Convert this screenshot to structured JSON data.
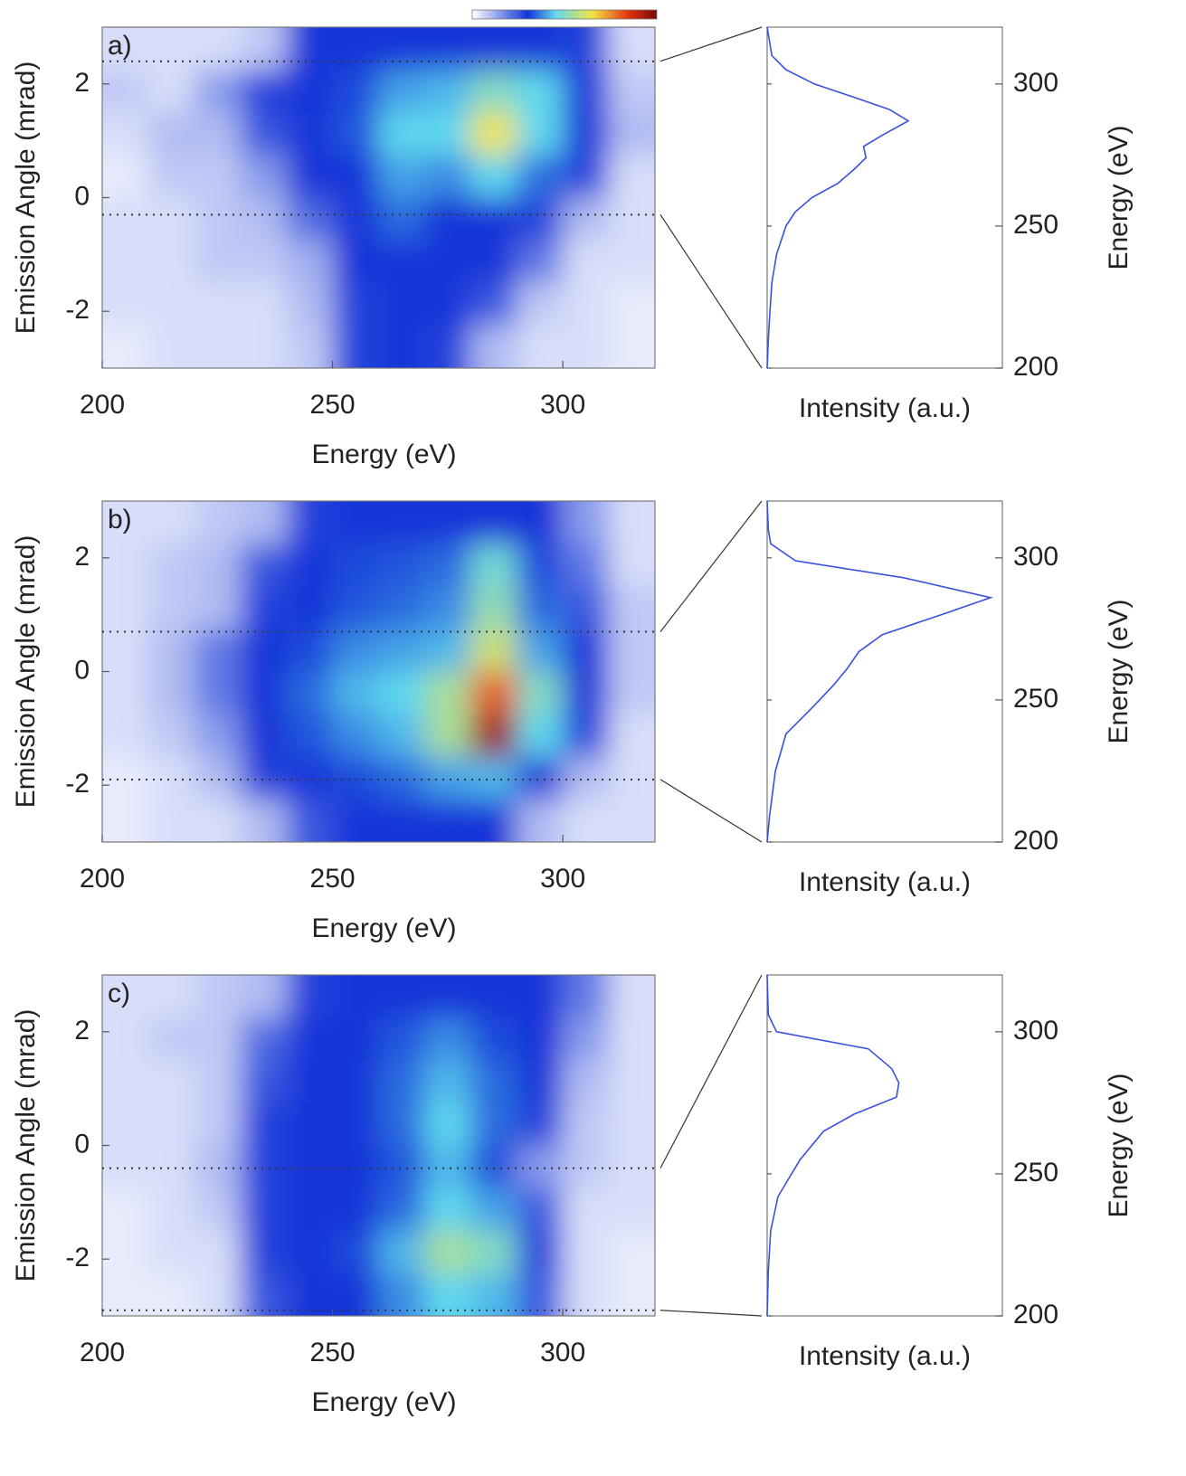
{
  "chart_data": [
    {
      "type": "heatmap",
      "panel_label": "a)",
      "xlabel": "Energy (eV)",
      "ylabel": "Emission Angle (mrad)",
      "x": [
        205,
        215,
        225,
        235,
        245,
        255,
        265,
        275,
        285,
        295,
        305,
        315
      ],
      "y": [
        2.625,
        1.875,
        1.125,
        0.375,
        -0.375,
        -1.125,
        -1.875,
        -2.625
      ],
      "z": [
        [
          0.05,
          0.05,
          0.05,
          0.08,
          0.3,
          0.3,
          0.3,
          0.3,
          0.3,
          0.3,
          0.28,
          0.05
        ],
        [
          0.08,
          0.05,
          0.15,
          0.28,
          0.3,
          0.32,
          0.4,
          0.42,
          0.5,
          0.45,
          0.3,
          0.08
        ],
        [
          0.05,
          0.1,
          0.1,
          0.25,
          0.3,
          0.33,
          0.45,
          0.45,
          0.65,
          0.45,
          0.3,
          0.1
        ],
        [
          0.03,
          0.08,
          0.08,
          0.15,
          0.3,
          0.3,
          0.4,
          0.38,
          0.45,
          0.35,
          0.28,
          0.05
        ],
        [
          0.05,
          0.05,
          0.08,
          0.1,
          0.22,
          0.3,
          0.35,
          0.3,
          0.3,
          0.28,
          0.1,
          0.05
        ],
        [
          0.05,
          0.05,
          0.08,
          0.08,
          0.12,
          0.3,
          0.3,
          0.3,
          0.3,
          0.2,
          0.05,
          0.05
        ],
        [
          0.05,
          0.05,
          0.05,
          0.05,
          0.1,
          0.28,
          0.3,
          0.3,
          0.25,
          0.08,
          0.05,
          0.03
        ],
        [
          0.03,
          0.05,
          0.05,
          0.05,
          0.08,
          0.28,
          0.3,
          0.28,
          0.1,
          0.05,
          0.05,
          0.03
        ]
      ],
      "xlim": [
        200,
        320
      ],
      "ylim": [
        -3,
        3
      ],
      "xticks": [
        200,
        250,
        300
      ],
      "yticks": [
        -2,
        0,
        2
      ],
      "integration_range": [
        -0.3,
        2.4
      ]
    },
    {
      "type": "profile",
      "xlabel": "Intensity (a.u.)",
      "ylabel": "Energy (eV)",
      "color": "#3a4fe0",
      "energy": [
        200,
        210,
        220,
        230,
        240,
        250,
        255,
        260,
        265,
        270,
        274,
        278,
        282,
        287,
        291,
        295,
        300,
        305,
        310,
        320
      ],
      "intensity": [
        0,
        0.005,
        0.012,
        0.02,
        0.04,
        0.08,
        0.12,
        0.19,
        0.3,
        0.37,
        0.42,
        0.41,
        0.49,
        0.6,
        0.52,
        0.38,
        0.2,
        0.08,
        0.02,
        0
      ],
      "xlim": [
        0,
        1
      ],
      "ylim": [
        200,
        320
      ],
      "yticks": [
        200,
        250,
        300
      ]
    },
    {
      "type": "heatmap",
      "panel_label": "b)",
      "xlabel": "Energy (eV)",
      "ylabel": "Emission Angle (mrad)",
      "x": [
        205,
        215,
        225,
        235,
        245,
        255,
        265,
        275,
        285,
        295,
        305,
        315
      ],
      "y": [
        2.625,
        1.875,
        1.125,
        0.375,
        -0.375,
        -1.125,
        -1.875,
        -2.625
      ],
      "z": [
        [
          0.05,
          0.05,
          0.08,
          0.1,
          0.28,
          0.3,
          0.3,
          0.3,
          0.3,
          0.3,
          0.15,
          0.05
        ],
        [
          0.05,
          0.08,
          0.1,
          0.25,
          0.3,
          0.32,
          0.33,
          0.35,
          0.48,
          0.32,
          0.2,
          0.05
        ],
        [
          0.05,
          0.08,
          0.1,
          0.28,
          0.3,
          0.33,
          0.35,
          0.38,
          0.52,
          0.35,
          0.25,
          0.08
        ],
        [
          0.05,
          0.1,
          0.2,
          0.3,
          0.32,
          0.38,
          0.4,
          0.42,
          0.6,
          0.4,
          0.3,
          0.08
        ],
        [
          0.05,
          0.1,
          0.2,
          0.3,
          0.35,
          0.42,
          0.45,
          0.55,
          0.8,
          0.5,
          0.3,
          0.08
        ],
        [
          0.05,
          0.08,
          0.15,
          0.3,
          0.33,
          0.38,
          0.42,
          0.55,
          0.95,
          0.45,
          0.28,
          0.05
        ],
        [
          0.03,
          0.05,
          0.1,
          0.28,
          0.3,
          0.32,
          0.35,
          0.4,
          0.42,
          0.3,
          0.1,
          0.05
        ],
        [
          0.03,
          0.05,
          0.05,
          0.1,
          0.25,
          0.3,
          0.3,
          0.3,
          0.3,
          0.1,
          0.05,
          0.05
        ]
      ],
      "xlim": [
        200,
        320
      ],
      "ylim": [
        -3,
        3
      ],
      "xticks": [
        200,
        250,
        300
      ],
      "yticks": [
        -2,
        0,
        2
      ],
      "integration_range": [
        -1.9,
        0.7
      ]
    },
    {
      "type": "profile",
      "xlabel": "Intensity (a.u.)",
      "ylabel": "Energy (eV)",
      "color": "#3a4fe0",
      "energy": [
        200,
        209,
        225,
        238,
        248,
        255,
        261,
        267,
        273,
        280,
        286,
        293,
        299,
        305,
        310,
        320
      ],
      "intensity": [
        0,
        0.01,
        0.035,
        0.08,
        0.2,
        0.28,
        0.34,
        0.39,
        0.49,
        0.74,
        0.95,
        0.58,
        0.12,
        0.015,
        0.005,
        0
      ],
      "xlim": [
        0,
        1
      ],
      "ylim": [
        200,
        320
      ],
      "yticks": [
        200,
        250,
        300
      ]
    },
    {
      "type": "heatmap",
      "panel_label": "c)",
      "xlabel": "Energy (eV)",
      "ylabel": "Emission Angle (mrad)",
      "x": [
        205,
        215,
        225,
        235,
        245,
        255,
        265,
        275,
        285,
        295,
        305,
        315
      ],
      "y": [
        2.625,
        1.875,
        1.125,
        0.375,
        -0.375,
        -1.125,
        -1.875,
        -2.625
      ],
      "z": [
        [
          0.05,
          0.05,
          0.08,
          0.1,
          0.28,
          0.3,
          0.3,
          0.3,
          0.3,
          0.3,
          0.2,
          0.05
        ],
        [
          0.05,
          0.08,
          0.08,
          0.22,
          0.3,
          0.3,
          0.33,
          0.38,
          0.32,
          0.3,
          0.15,
          0.05
        ],
        [
          0.05,
          0.05,
          0.08,
          0.25,
          0.3,
          0.3,
          0.35,
          0.42,
          0.35,
          0.3,
          0.1,
          0.05
        ],
        [
          0.05,
          0.05,
          0.08,
          0.28,
          0.3,
          0.3,
          0.35,
          0.45,
          0.35,
          0.28,
          0.08,
          0.05
        ],
        [
          0.05,
          0.05,
          0.1,
          0.28,
          0.3,
          0.3,
          0.33,
          0.42,
          0.32,
          0.15,
          0.08,
          0.05
        ],
        [
          0.03,
          0.05,
          0.08,
          0.28,
          0.3,
          0.3,
          0.35,
          0.45,
          0.4,
          0.25,
          0.05,
          0.05
        ],
        [
          0.03,
          0.05,
          0.05,
          0.28,
          0.3,
          0.32,
          0.42,
          0.55,
          0.5,
          0.28,
          0.05,
          0.03
        ],
        [
          0.03,
          0.03,
          0.05,
          0.25,
          0.3,
          0.3,
          0.38,
          0.45,
          0.42,
          0.25,
          0.05,
          0.03
        ]
      ],
      "xlim": [
        200,
        320
      ],
      "ylim": [
        -3,
        3
      ],
      "xticks": [
        200,
        250,
        300
      ],
      "yticks": [
        -2,
        0,
        2
      ],
      "integration_range": [
        -2.9,
        -0.4
      ]
    },
    {
      "type": "profile",
      "xlabel": "Intensity (a.u.)",
      "ylabel": "Energy (eV)",
      "color": "#3a4fe0",
      "energy": [
        200,
        216,
        230,
        242,
        255,
        265,
        271,
        277,
        282,
        287,
        294,
        300,
        306,
        320
      ],
      "intensity": [
        0,
        0.005,
        0.015,
        0.046,
        0.14,
        0.24,
        0.37,
        0.55,
        0.56,
        0.53,
        0.43,
        0.04,
        0.005,
        0
      ],
      "xlim": [
        0,
        1
      ],
      "ylim": [
        200,
        320
      ],
      "yticks": [
        200,
        250,
        300
      ]
    }
  ],
  "colormap": {
    "stops": [
      0,
      0.3,
      0.45,
      0.65,
      0.85,
      1
    ],
    "colors": [
      "#ffffff",
      "#1236d8",
      "#5fd8ee",
      "#f3e443",
      "#e0300f",
      "#7a0808"
    ]
  }
}
